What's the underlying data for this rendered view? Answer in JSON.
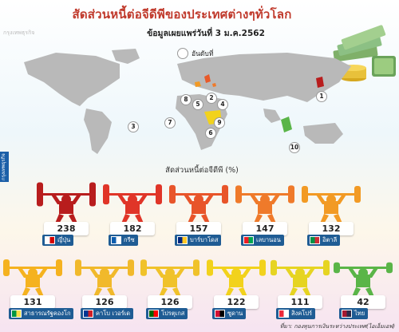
{
  "header": {
    "title": "สัดส่วนหนี้ต่อจีดีพีของประเทศต่างๆทั่วโลก",
    "subtitle": "ข้อมูลเผยแพร่วันที่ 3 ม.ค.2562",
    "watermark": "กรุงเทพธุรกิจ",
    "legend_label": "อันดับที่"
  },
  "side_label": "กรุงเทพธุรกิจ",
  "map_ranks": [
    "1",
    "2",
    "3",
    "4",
    "5",
    "6",
    "7",
    "8",
    "9",
    "10"
  ],
  "axis_title": "สัดส่วนหนี้ต่อจีดีพี (%)",
  "source": "ที่มา: กองทุนการเงินระหว่างประเทศ(ไอเอ็มเอฟ)",
  "chart_data": {
    "type": "bar",
    "title": "สัดส่วนหนี้ต่อจีดีพีของประเทศต่างๆทั่วโลก",
    "ylabel": "สัดส่วนหนี้ต่อจีดีพี (%)",
    "categories": [
      "ญี่ปุ่น",
      "กรีซ",
      "บาร์บาโดส",
      "เลบานอน",
      "อิตาลี",
      "สาธารณรัฐคองโก",
      "คาโบ เวอร์เด",
      "โปรตุเกส",
      "ซูดาน",
      "สิงคโปร์",
      "ไทย"
    ],
    "values": [
      238,
      182,
      157,
      147,
      132,
      131,
      126,
      126,
      122,
      111,
      42
    ],
    "colors": [
      "#b81d1d",
      "#e03528",
      "#e8552a",
      "#ef7a2a",
      "#f29a24",
      "#f5b21f",
      "#f1b92b",
      "#f0c22a",
      "#f2d21c",
      "#e6d421",
      "#5ab548"
    ],
    "flag_colors": [
      [
        "#ffffff",
        "#d40000"
      ],
      [
        "#0d5eaf",
        "#ffffff"
      ],
      [
        "#00267f",
        "#ffc726"
      ],
      [
        "#ed1c24",
        "#00a651"
      ],
      [
        "#009246",
        "#ce2b37"
      ],
      [
        "#009543",
        "#fbde4a"
      ],
      [
        "#003893",
        "#cf2027"
      ],
      [
        "#006600",
        "#ff0000"
      ],
      [
        "#d21034",
        "#000000"
      ],
      [
        "#ed2939",
        "#ffffff"
      ],
      [
        "#a51931",
        "#2d2a4a"
      ]
    ]
  }
}
